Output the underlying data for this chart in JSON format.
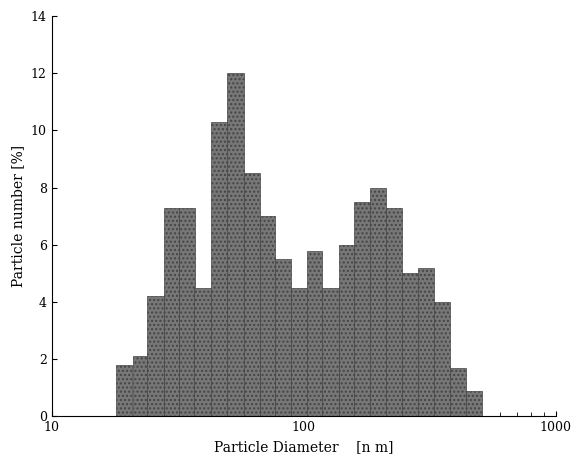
{
  "title": "",
  "xlabel": "Particle Diameter    [n m]",
  "ylabel": "Particle number [%]",
  "xlim": [
    10,
    1000
  ],
  "ylim": [
    0,
    14
  ],
  "yticks": [
    0,
    2,
    4,
    6,
    8,
    10,
    12,
    14
  ],
  "bar_color": "#777777",
  "bar_edge_color": "#444444",
  "background_color": "#ffffff",
  "bar_left_edges_nm": [
    18,
    21,
    24,
    28,
    32,
    37,
    43,
    50,
    58,
    67,
    77,
    89,
    103,
    119,
    138,
    159,
    184,
    213,
    246,
    284,
    329,
    380,
    440
  ],
  "bar_right_edges_nm": [
    21,
    24,
    28,
    32,
    37,
    43,
    50,
    58,
    67,
    77,
    89,
    103,
    119,
    138,
    159,
    184,
    213,
    246,
    284,
    329,
    380,
    440,
    509
  ],
  "bar_heights": [
    1.8,
    2.1,
    4.2,
    7.3,
    7.3,
    4.5,
    10.3,
    12.0,
    8.5,
    7.0,
    5.5,
    4.5,
    5.8,
    4.5,
    6.0,
    7.5,
    8.0,
    7.3,
    5.0,
    5.2,
    4.0,
    1.7,
    0.9
  ]
}
